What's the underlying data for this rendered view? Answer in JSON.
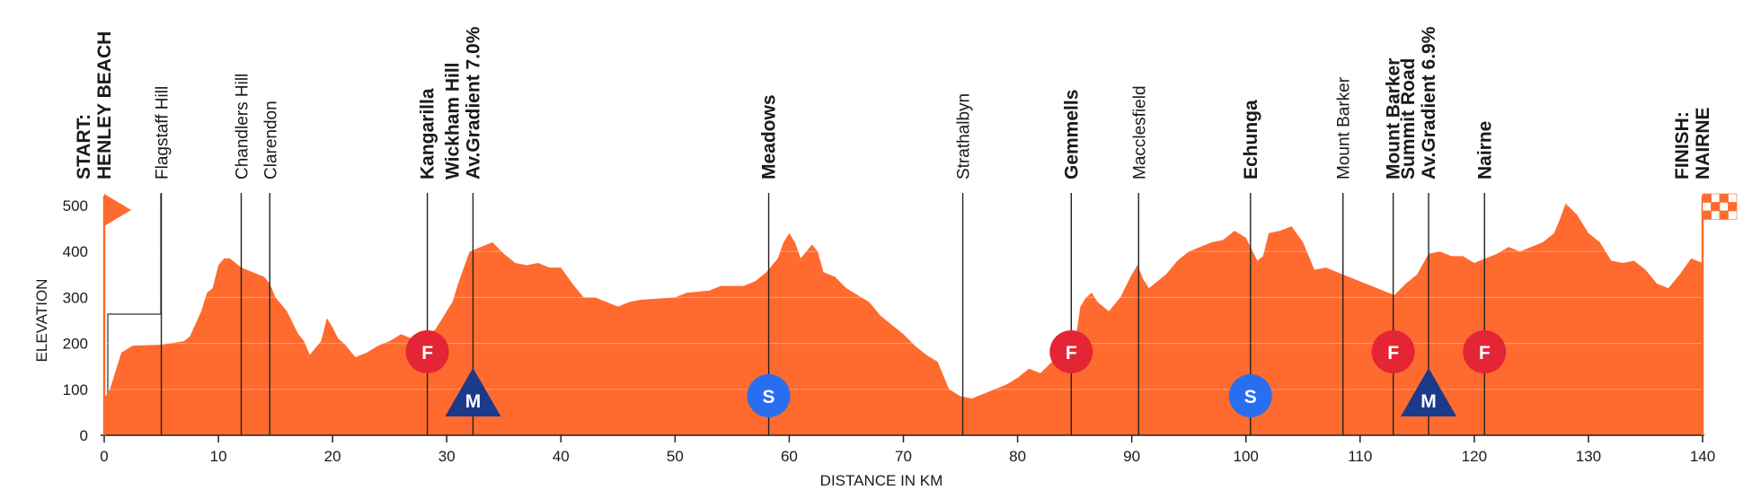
{
  "chart_data": {
    "type": "area",
    "x_label": "DISTANCE IN KM",
    "y_label": "ELEVATION",
    "color": "#ff6a2e",
    "x": [
      0,
      0.5,
      1.5,
      2.5,
      5,
      7,
      7.5,
      8.5,
      9,
      9.5,
      10,
      10.5,
      11,
      12,
      13,
      14,
      14.5,
      15,
      16,
      17,
      17.5,
      18,
      19,
      19.5,
      20,
      20.5,
      21,
      22,
      23,
      24,
      25,
      26,
      27,
      28,
      29,
      30,
      30.5,
      31,
      32,
      33,
      34,
      35,
      36,
      37,
      38,
      39,
      40,
      41,
      42,
      43,
      44,
      45,
      46,
      47,
      50,
      51,
      53,
      54,
      56,
      57,
      58,
      59,
      59.5,
      60,
      60.5,
      61,
      61.5,
      62,
      62.5,
      63,
      64,
      65,
      66,
      67,
      68,
      69,
      70,
      71,
      72,
      73,
      73.5,
      74,
      75,
      76,
      77,
      78,
      79,
      80,
      81,
      82,
      83,
      84,
      85,
      85.5,
      86,
      86.5,
      87,
      88,
      89,
      90,
      90.5,
      91,
      91.5,
      92,
      93,
      94,
      95,
      96,
      97,
      98,
      99,
      100,
      101,
      101.5,
      102,
      103,
      104,
      105,
      106,
      107,
      108,
      109,
      110,
      111,
      112,
      113,
      114,
      115,
      116,
      117,
      118,
      119,
      120,
      121,
      122,
      123,
      124,
      125,
      126,
      127,
      127.5,
      128,
      129,
      130,
      131,
      132,
      133,
      134,
      135,
      136,
      137,
      138,
      139,
      139.5,
      140
    ],
    "values": [
      80,
      100,
      180,
      195,
      197,
      205,
      215,
      270,
      310,
      320,
      370,
      385,
      385,
      365,
      355,
      345,
      330,
      300,
      270,
      220,
      205,
      175,
      205,
      255,
      235,
      210,
      200,
      170,
      180,
      195,
      205,
      220,
      210,
      215,
      230,
      270,
      290,
      330,
      400,
      410,
      420,
      395,
      375,
      370,
      375,
      365,
      365,
      330,
      300,
      300,
      290,
      280,
      290,
      295,
      300,
      310,
      315,
      325,
      325,
      335,
      355,
      385,
      420,
      440,
      420,
      385,
      400,
      415,
      400,
      355,
      345,
      320,
      305,
      290,
      260,
      240,
      220,
      195,
      175,
      160,
      130,
      100,
      85,
      80,
      90,
      100,
      110,
      125,
      145,
      135,
      160,
      175,
      195,
      280,
      300,
      310,
      290,
      270,
      300,
      350,
      370,
      340,
      320,
      330,
      350,
      380,
      400,
      410,
      420,
      425,
      445,
      430,
      380,
      390,
      440,
      445,
      455,
      420,
      360,
      365,
      355,
      345,
      335,
      325,
      315,
      305,
      330,
      350,
      395,
      400,
      390,
      390,
      375,
      385,
      395,
      410,
      400,
      410,
      420,
      440,
      470,
      505,
      480,
      440,
      420,
      380,
      375,
      380,
      360,
      330,
      320,
      350,
      385,
      380,
      375
    ],
    "xlim": [
      0,
      140
    ],
    "ylim": [
      0,
      500
    ],
    "xticks": [
      0,
      10,
      20,
      30,
      40,
      50,
      60,
      70,
      80,
      90,
      100,
      110,
      120,
      130,
      140
    ],
    "yticks": [
      0,
      100,
      200,
      300,
      400,
      500
    ],
    "grid": true,
    "places": [
      {
        "km": 0,
        "lines": [
          "START:",
          "HENLEY BEACH"
        ],
        "bold": true,
        "flag": "start"
      },
      {
        "km": 5,
        "lines": [
          "Flagstaff Hill"
        ],
        "bold": false
      },
      {
        "km": 12,
        "lines": [
          "Chandlers Hill"
        ],
        "bold": false
      },
      {
        "km": 14.5,
        "lines": [
          "Clarendon"
        ],
        "bold": false
      },
      {
        "km": 28.3,
        "lines": [
          "Kangarilla"
        ],
        "bold": true,
        "icon": "F"
      },
      {
        "km": 32.3,
        "lines": [
          "Wickham Hill",
          "Av.Gradient 7.0%"
        ],
        "bold": true,
        "icon": "M"
      },
      {
        "km": 58.2,
        "lines": [
          "Meadows"
        ],
        "bold": true,
        "icon": "S"
      },
      {
        "km": 75.2,
        "lines": [
          "Strathalbyn"
        ],
        "bold": false
      },
      {
        "km": 84.7,
        "lines": [
          "Gemmells"
        ],
        "bold": true,
        "icon": "F"
      },
      {
        "km": 90.6,
        "lines": [
          "Macclesfield"
        ],
        "bold": false
      },
      {
        "km": 100.4,
        "lines": [
          "Echunga"
        ],
        "bold": true,
        "icon": "S"
      },
      {
        "km": 108.5,
        "lines": [
          "Mount Barker"
        ],
        "bold": false
      },
      {
        "km": 112.9,
        "lines": [
          "Mount Barker"
        ],
        "bold": true,
        "icon": "F"
      },
      {
        "km": 116,
        "lines": [
          "Summit Road",
          "Av.Gradient 6.9%"
        ],
        "bold": true,
        "icon": "M"
      },
      {
        "km": 120.9,
        "lines": [
          "Nairne"
        ],
        "bold": true,
        "icon": "F"
      },
      {
        "km": 140,
        "lines": [
          "FINISH:",
          "NAIRNE"
        ],
        "bold": true,
        "flag": "finish"
      }
    ]
  }
}
